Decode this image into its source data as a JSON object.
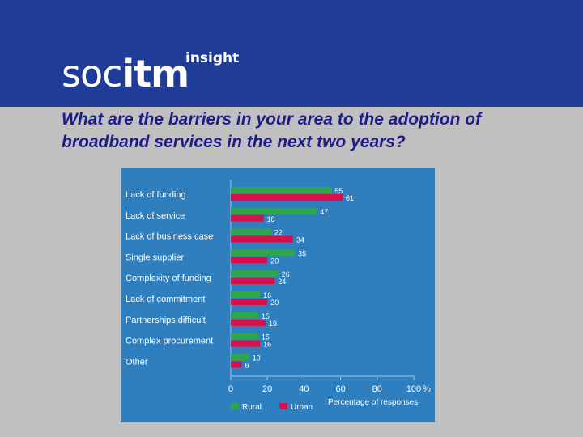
{
  "header": {
    "logo_part1": "soc",
    "logo_part2": "itm",
    "logo_sub": "insight"
  },
  "question": "What are the barriers in your area to the adoption of broadband services in the next two years?",
  "colors": {
    "banner": "#1f3c99",
    "panel": "#2f7fbf",
    "rural": "#2ea64a",
    "urban": "#d8104a"
  },
  "chart_data": {
    "type": "bar",
    "orientation": "horizontal",
    "categories": [
      "Lack of funding",
      "Lack of service",
      "Lack of business case",
      "Single supplier",
      "Complexity of funding",
      "Lack of commitment",
      "Partnerships difficult",
      "Complex procurement",
      "Other"
    ],
    "series": [
      {
        "name": "Rural",
        "values": [
          55,
          47,
          22,
          35,
          26,
          16,
          15,
          15,
          10
        ]
      },
      {
        "name": "Urban",
        "values": [
          61,
          18,
          34,
          20,
          24,
          20,
          19,
          16,
          6
        ]
      }
    ],
    "xlim": [
      0,
      100
    ],
    "xticks": [
      "0",
      "20",
      "40",
      "60",
      "80",
      "100"
    ],
    "percent_sign": "%",
    "xlabel": "Percentage of responses",
    "legend": [
      "Rural",
      "Urban"
    ],
    "legend_position": "bottom"
  }
}
